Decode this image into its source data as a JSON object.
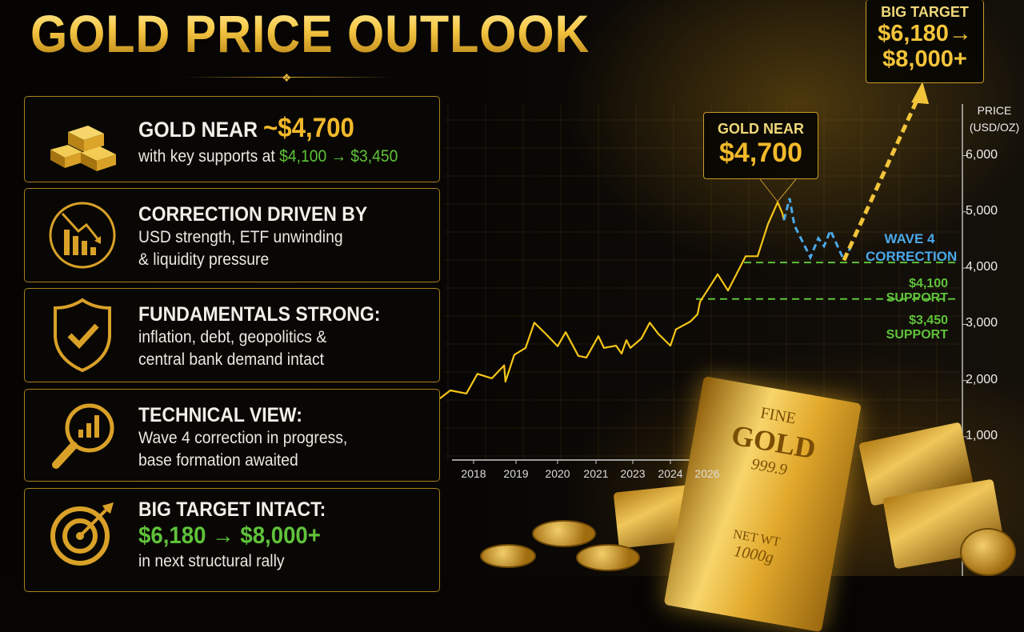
{
  "title": "GOLD PRICE OUTLOOK",
  "cards": [
    {
      "icon": "gold-bars-icon",
      "heading": "GOLD NEAR ",
      "heading_accent": "~$4,700",
      "line1": "with key supports at ",
      "line1_green": "$4,100 → $3,450"
    },
    {
      "icon": "downtrend-chart-icon",
      "heading": "CORRECTION DRIVEN BY",
      "line1": "USD strength, ETF unwinding",
      "line2": "& liquidity pressure"
    },
    {
      "icon": "shield-check-icon",
      "heading": "FUNDAMENTALS STRONG:",
      "line1": "inflation, debt, geopolitics &",
      "line2": "central bank demand intact"
    },
    {
      "icon": "magnifier-chart-icon",
      "heading": "TECHNICAL VIEW:",
      "line1": "Wave 4 correction in progress,",
      "line2": "base formation awaited"
    },
    {
      "icon": "target-arrow-icon",
      "heading": "BIG TARGET INTACT:",
      "line1_green": "$6,180 → $8,000+",
      "line2": "in next structural rally"
    }
  ],
  "callouts": {
    "gold_near": {
      "label": "GOLD NEAR",
      "value": "$4,700"
    },
    "big_target": {
      "label": "BIG TARGET",
      "value1": "$6,180→",
      "value2": "$8,000+"
    },
    "wave": {
      "line1": "WAVE 4",
      "line2": "CORRECTION"
    }
  },
  "gold_bar": {
    "line1": "FINE",
    "line2": "GOLD",
    "line3": "999.9",
    "line4": "NET WT",
    "line5": "1000g"
  },
  "colors": {
    "gold": "#f2b92a",
    "green": "#5fc23a",
    "wave_blue": "#4aa8e8",
    "line": "#f5c518"
  },
  "chart_data": {
    "type": "line",
    "ylabel": "PRICE (USD/OZ)",
    "yticks": [
      1000,
      2000,
      3000,
      4000,
      5000,
      6000
    ],
    "yticklabels": [
      "1,000",
      "2,000",
      "3,000",
      "4,000",
      "5,000",
      "6,000"
    ],
    "xticks": [
      2018,
      2019,
      2020,
      2021,
      2023,
      2024,
      2026
    ],
    "xticklabels": [
      "2018",
      "2019",
      "2020",
      "2021",
      "2023",
      "2024",
      "2026"
    ],
    "grid": true,
    "series": [
      {
        "role": "history",
        "points": [
          [
            2017.2,
            1680
          ],
          [
            2017.45,
            1825
          ],
          [
            2017.83,
            1770
          ],
          [
            2018.09,
            2120
          ],
          [
            2018.43,
            2040
          ],
          [
            2018.72,
            2270
          ],
          [
            2018.75,
            1980
          ],
          [
            2018.96,
            2460
          ],
          [
            2019.23,
            2580
          ],
          [
            2019.44,
            3030
          ],
          [
            2019.73,
            2820
          ],
          [
            2020.0,
            2610
          ],
          [
            2020.21,
            2860
          ],
          [
            2020.54,
            2440
          ],
          [
            2020.75,
            2410
          ],
          [
            2021.13,
            2790
          ],
          [
            2021.43,
            2580
          ],
          [
            2022.09,
            2620
          ],
          [
            2022.39,
            2480
          ],
          [
            2022.65,
            2720
          ],
          [
            2022.87,
            2580
          ],
          [
            2023.23,
            2750
          ],
          [
            2023.45,
            3030
          ],
          [
            2023.68,
            2830
          ],
          [
            2024.0,
            2620
          ],
          [
            2024.3,
            2910
          ],
          [
            2025.09,
            3050
          ],
          [
            2025.48,
            3180
          ],
          [
            2025.61,
            3400
          ],
          [
            2026.57,
            3890
          ],
          [
            2027.13,
            3600
          ],
          [
            2028.09,
            4210
          ],
          [
            2028.74,
            4210
          ],
          [
            2029.3,
            4780
          ],
          [
            2029.83,
            5170
          ],
          [
            2030.09,
            4970
          ],
          [
            2030.17,
            4850
          ]
        ]
      },
      {
        "role": "wave-4-projection",
        "points": [
          [
            2030.17,
            4850
          ],
          [
            2030.48,
            5240
          ],
          [
            2030.74,
            4760
          ],
          [
            2031.61,
            4190
          ],
          [
            2032.04,
            4530
          ],
          [
            2032.35,
            4390
          ],
          [
            2032.7,
            4670
          ],
          [
            2033.43,
            4140
          ],
          [
            2033.78,
            4360
          ]
        ]
      },
      {
        "role": "target-projection",
        "points": [
          [
            2033.43,
            4140
          ],
          [
            2037.7,
            7200
          ]
        ]
      }
    ],
    "supports": [
      {
        "value": 4100,
        "label": "$4,100 SUPPORT"
      },
      {
        "value": 3450,
        "label": "$3,450 SUPPORT"
      }
    ]
  }
}
